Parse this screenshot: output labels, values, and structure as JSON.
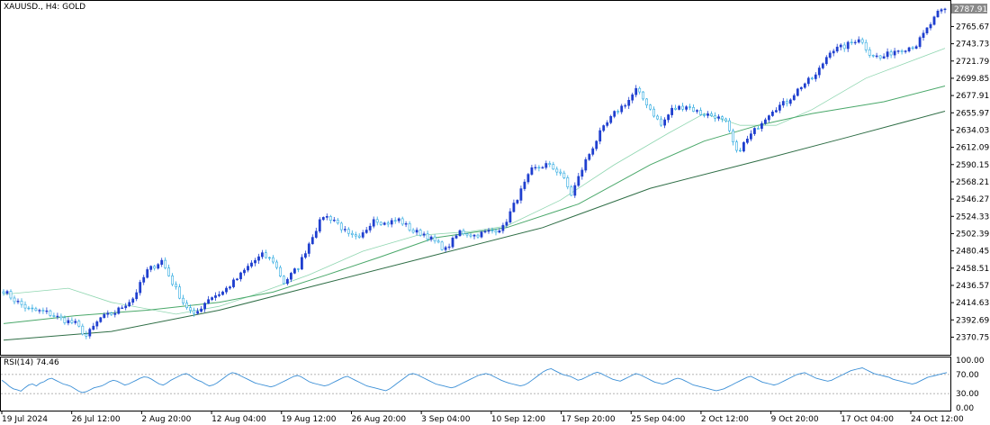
{
  "chart_data": {
    "type": "candlestick",
    "symbol_label": "XAUUSD., H4:  GOLD",
    "current_price_label": "2787.91",
    "colors": {
      "bull_body": "#1f3fcf",
      "bear_body": "#ffffff",
      "bear_border": "#2aa8e0",
      "ma_fast": "#8fd6b0",
      "ma_mid": "#4aa86a",
      "ma_slow": "#2f6e46",
      "rsi_line": "#3b8fd6",
      "rsi_level": "#9a9a9a",
      "price_tag_bg": "#8a8a8a"
    },
    "price_axis": {
      "range": [
        2359.81,
        2787.91
      ],
      "ticks": [
        "2765.67",
        "2743.73",
        "2721.79",
        "2699.85",
        "2677.91",
        "2655.97",
        "2634.03",
        "2612.09",
        "2590.15",
        "2568.21",
        "2546.27",
        "2524.33",
        "2502.39",
        "2480.45",
        "2458.51",
        "2436.57",
        "2414.63",
        "2392.69",
        "2370.75"
      ]
    },
    "time_axis": {
      "labels": [
        "19 Jul 2024",
        "26 Jul 12:00",
        "2 Aug 20:00",
        "12 Aug 04:00",
        "19 Aug 12:00",
        "26 Aug 20:00",
        "3 Sep 04:00",
        "10 Sep 12:00",
        "17 Sep 20:00",
        "25 Sep 04:00",
        "2 Oct 12:00",
        "9 Oct 20:00",
        "17 Oct 04:00",
        "24 Oct 12:00"
      ]
    },
    "close_path": [
      [
        0,
        2430
      ],
      [
        3,
        2418
      ],
      [
        7,
        2406
      ],
      [
        12,
        2402
      ],
      [
        17,
        2392
      ],
      [
        20,
        2388
      ],
      [
        23,
        2372
      ],
      [
        27,
        2395
      ],
      [
        31,
        2402
      ],
      [
        36,
        2420
      ],
      [
        40,
        2455
      ],
      [
        44,
        2468
      ],
      [
        47,
        2440
      ],
      [
        50,
        2415
      ],
      [
        53,
        2398
      ],
      [
        57,
        2420
      ],
      [
        61,
        2428
      ],
      [
        65,
        2445
      ],
      [
        69,
        2465
      ],
      [
        72,
        2475
      ],
      [
        75,
        2468
      ],
      [
        78,
        2440
      ],
      [
        82,
        2460
      ],
      [
        86,
        2500
      ],
      [
        89,
        2525
      ],
      [
        92,
        2520
      ],
      [
        96,
        2500
      ],
      [
        99,
        2495
      ],
      [
        103,
        2522
      ],
      [
        106,
        2515
      ],
      [
        110,
        2520
      ],
      [
        114,
        2505
      ],
      [
        117,
        2502
      ],
      [
        120,
        2492
      ],
      [
        123,
        2482
      ],
      [
        127,
        2505
      ],
      [
        131,
        2500
      ],
      [
        135,
        2505
      ],
      [
        139,
        2510
      ],
      [
        143,
        2548
      ],
      [
        147,
        2583
      ],
      [
        151,
        2590
      ],
      [
        155,
        2580
      ],
      [
        158,
        2552
      ],
      [
        162,
        2595
      ],
      [
        166,
        2630
      ],
      [
        170,
        2655
      ],
      [
        174,
        2672
      ],
      [
        176,
        2685
      ],
      [
        179,
        2668
      ],
      [
        183,
        2640
      ],
      [
        186,
        2660
      ],
      [
        190,
        2665
      ],
      [
        194,
        2655
      ],
      [
        198,
        2652
      ],
      [
        201,
        2643
      ],
      [
        204,
        2605
      ],
      [
        207,
        2622
      ],
      [
        211,
        2645
      ],
      [
        214,
        2660
      ],
      [
        218,
        2670
      ],
      [
        222,
        2690
      ],
      [
        226,
        2703
      ],
      [
        230,
        2735
      ],
      [
        234,
        2740
      ],
      [
        238,
        2751
      ],
      [
        241,
        2732
      ],
      [
        244,
        2725
      ],
      [
        248,
        2735
      ],
      [
        251,
        2738
      ],
      [
        254,
        2742
      ],
      [
        257,
        2762
      ],
      [
        260,
        2782
      ],
      [
        262,
        2787.91
      ]
    ],
    "moving_averages": [
      {
        "key": "ma_fast",
        "points": [
          [
            0,
            2425
          ],
          [
            18,
            2433
          ],
          [
            30,
            2415
          ],
          [
            48,
            2400
          ],
          [
            60,
            2410
          ],
          [
            70,
            2425
          ],
          [
            85,
            2450
          ],
          [
            100,
            2480
          ],
          [
            115,
            2500
          ],
          [
            130,
            2505
          ],
          [
            140,
            2512
          ],
          [
            155,
            2545
          ],
          [
            170,
            2590
          ],
          [
            185,
            2630
          ],
          [
            195,
            2655
          ],
          [
            205,
            2640
          ],
          [
            215,
            2640
          ],
          [
            225,
            2660
          ],
          [
            240,
            2700
          ],
          [
            262,
            2738
          ]
        ]
      },
      {
        "key": "ma_mid",
        "points": [
          [
            0,
            2388
          ],
          [
            20,
            2398
          ],
          [
            40,
            2405
          ],
          [
            60,
            2415
          ],
          [
            75,
            2428
          ],
          [
            90,
            2450
          ],
          [
            105,
            2473
          ],
          [
            120,
            2497
          ],
          [
            140,
            2510
          ],
          [
            160,
            2540
          ],
          [
            180,
            2590
          ],
          [
            195,
            2620
          ],
          [
            210,
            2640
          ],
          [
            225,
            2655
          ],
          [
            245,
            2670
          ],
          [
            262,
            2690
          ]
        ]
      },
      {
        "key": "ma_slow",
        "points": [
          [
            0,
            2367
          ],
          [
            30,
            2378
          ],
          [
            60,
            2405
          ],
          [
            90,
            2440
          ],
          [
            120,
            2475
          ],
          [
            150,
            2510
          ],
          [
            180,
            2560
          ],
          [
            210,
            2595
          ],
          [
            235,
            2625
          ],
          [
            262,
            2658
          ]
        ]
      }
    ],
    "rsi": {
      "label": "RSI(14) 74.46",
      "range": [
        0,
        100
      ],
      "ticks": [
        "100.00",
        "70.00",
        "30.00",
        "0.00"
      ],
      "levels": [
        70,
        30
      ],
      "values": [
        58,
        52,
        45,
        40,
        38,
        35,
        42,
        48,
        50,
        46,
        52,
        55,
        60,
        62,
        58,
        54,
        50,
        48,
        45,
        40,
        35,
        32,
        34,
        38,
        42,
        44,
        46,
        50,
        55,
        58,
        56,
        52,
        48,
        50,
        54,
        58,
        62,
        65,
        64,
        60,
        55,
        50,
        48,
        52,
        58,
        62,
        66,
        70,
        72,
        68,
        62,
        58,
        55,
        50,
        46,
        48,
        52,
        58,
        64,
        70,
        74,
        72,
        68,
        64,
        60,
        56,
        52,
        50,
        48,
        46,
        44,
        46,
        50,
        54,
        58,
        62,
        66,
        68,
        65,
        60,
        55,
        52,
        50,
        48,
        46,
        48,
        52,
        56,
        60,
        64,
        66,
        62,
        58,
        54,
        50,
        46,
        44,
        42,
        40,
        38,
        36,
        40,
        46,
        52,
        58,
        64,
        70,
        72,
        70,
        66,
        62,
        58,
        54,
        50,
        48,
        46,
        44,
        42,
        44,
        48,
        52,
        56,
        60,
        64,
        68,
        70,
        72,
        70,
        66,
        62,
        58,
        55,
        52,
        50,
        48,
        46,
        48,
        52,
        58,
        64,
        70,
        76,
        80,
        82,
        78,
        74,
        70,
        68,
        66,
        62,
        58,
        60,
        64,
        68,
        72,
        75,
        72,
        68,
        64,
        60,
        58,
        56,
        60,
        64,
        68,
        72,
        70,
        66,
        62,
        58,
        54,
        52,
        50,
        52,
        56,
        60,
        62,
        60,
        56,
        52,
        48,
        46,
        44,
        42,
        40,
        38,
        36,
        38,
        40,
        44,
        48,
        52,
        56,
        60,
        64,
        66,
        62,
        58,
        54,
        52,
        50,
        48,
        50,
        54,
        58,
        62,
        66,
        70,
        72,
        74,
        70,
        66,
        62,
        60,
        58,
        56,
        58,
        62,
        66,
        70,
        74,
        78,
        80,
        82,
        84,
        80,
        76,
        72,
        70,
        68,
        66,
        64,
        60,
        58,
        56,
        54,
        52,
        50,
        52,
        56,
        60,
        64,
        66,
        68,
        70,
        72,
        74
      ]
    }
  }
}
